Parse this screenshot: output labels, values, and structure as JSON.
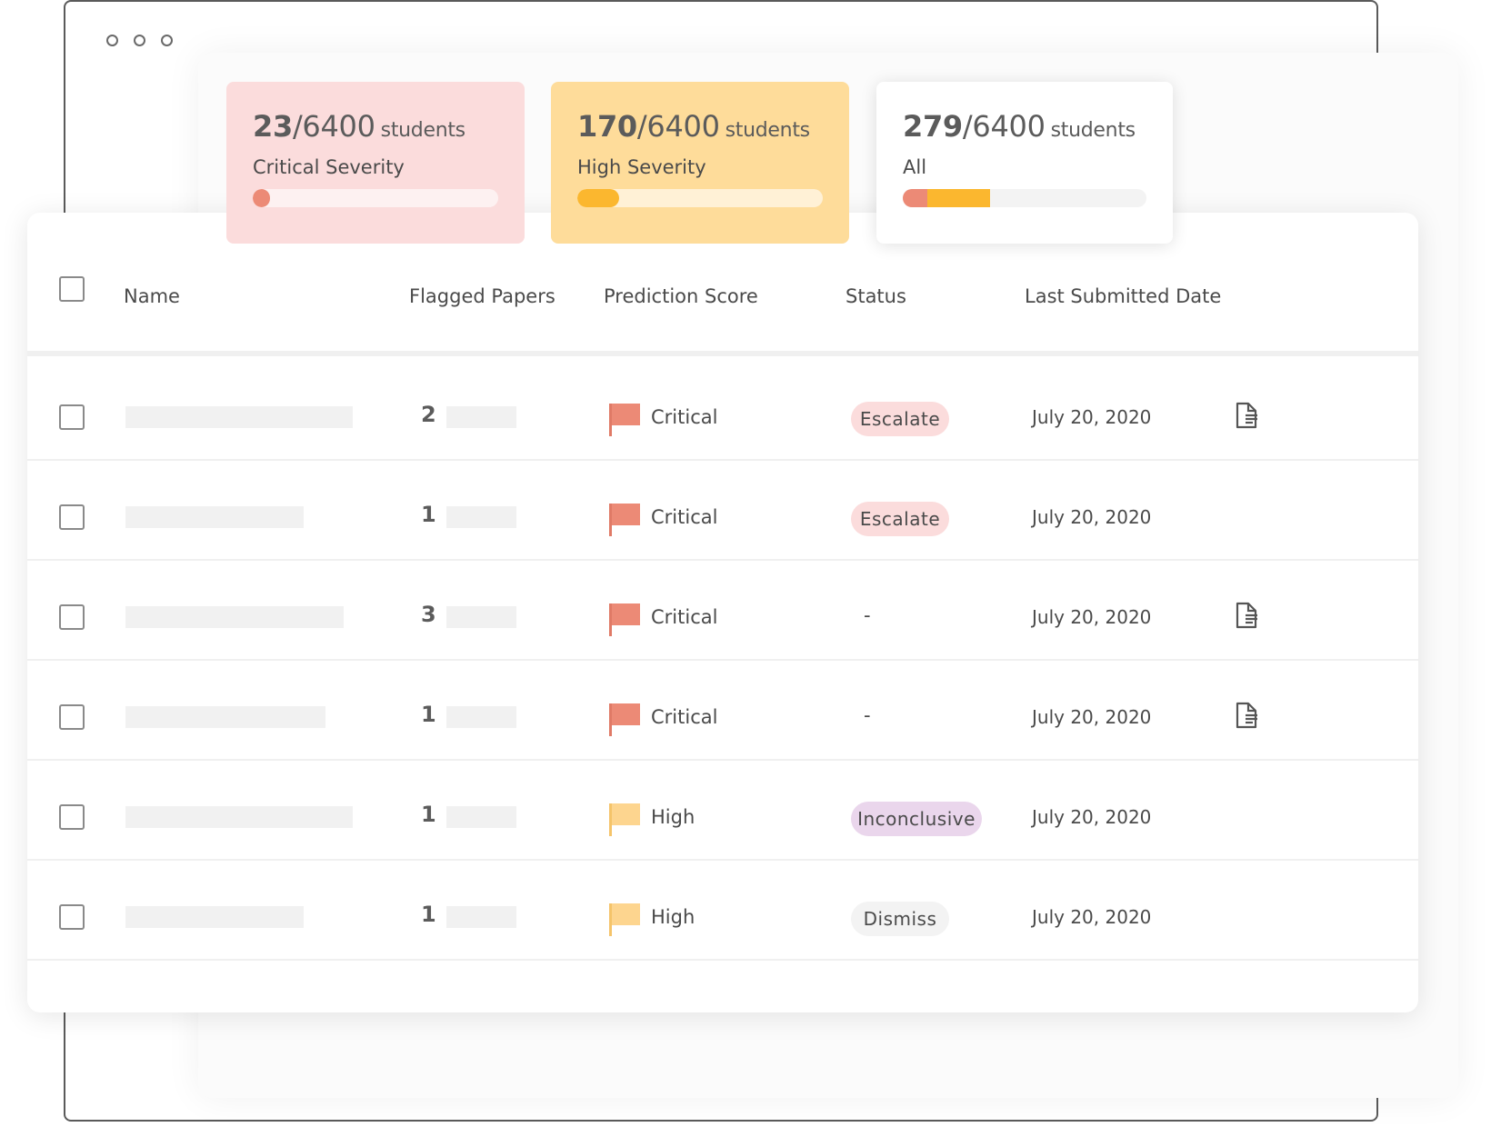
{
  "summary_cards": [
    {
      "id": "critical",
      "count": "23",
      "total": "/6400",
      "unit": "students",
      "label": "Critical Severity",
      "critical_fraction": 0.033,
      "high_fraction": 0
    },
    {
      "id": "high",
      "count": "170",
      "total": "/6400",
      "unit": "students",
      "label": "High Severity",
      "critical_fraction": 0,
      "high_fraction": 0.17
    },
    {
      "id": "all",
      "count": "279",
      "total": "/6400",
      "unit": "students",
      "label": "All",
      "critical_fraction": 0.1,
      "high_fraction": 0.26
    }
  ],
  "table": {
    "columns": {
      "name": "Name",
      "flagged": "Flagged Papers",
      "score": "Prediction Score",
      "status": "Status",
      "date": "Last Submitted Date"
    },
    "rows": [
      {
        "flagged": "2",
        "score": "Critical",
        "status": "Escalate",
        "status_type": "escalate",
        "date": "July 20, 2020",
        "has_doc": true
      },
      {
        "flagged": "1",
        "score": "Critical",
        "status": "Escalate",
        "status_type": "escalate",
        "date": "July 20, 2020",
        "has_doc": false
      },
      {
        "flagged": "3",
        "score": "Critical",
        "status": "-",
        "status_type": "none",
        "date": "July 20, 2020",
        "has_doc": true
      },
      {
        "flagged": "1",
        "score": "Critical",
        "status": "-",
        "status_type": "none",
        "date": "July 20, 2020",
        "has_doc": true
      },
      {
        "flagged": "1",
        "score": "High",
        "status": "Inconclusive",
        "status_type": "inconclusive",
        "date": "July 20, 2020",
        "has_doc": false
      },
      {
        "flagged": "1",
        "score": "High",
        "status": "Dismiss",
        "status_type": "dismiss",
        "date": "July 20, 2020",
        "has_doc": false
      }
    ]
  },
  "colors": {
    "critical_flag": "#ec8a76",
    "critical_pole": "#e07a66",
    "high_flag": "#fdd58f",
    "high_pole": "#f5c46a"
  },
  "icons": {
    "row_action": "document-icon",
    "window_controls": "circle-icon"
  }
}
